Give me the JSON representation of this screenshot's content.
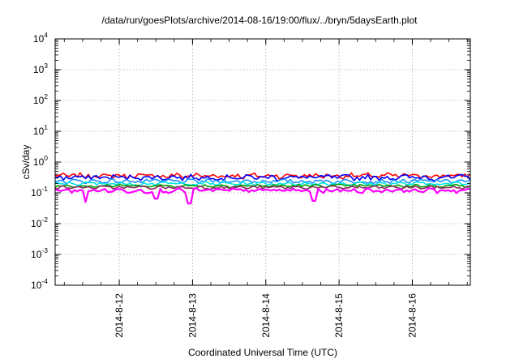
{
  "title": "/data/run/goesPlots/archive/2014-08-16/19:00/flux/../bryn/5daysEarth.plot",
  "xlabel": "Coordinated Universal Time (UTC)",
  "ylabel": "cSv/day",
  "chart_data": {
    "type": "line",
    "title": "/data/run/goesPlots/archive/2014-08-16/19:00/flux/../bryn/5daysEarth.plot",
    "xlabel": "Coordinated Universal Time (UTC)",
    "ylabel": "cSv/day",
    "yscale": "log",
    "ylim": [
      0.0001,
      10000
    ],
    "xlim": [
      "2014-08-11T03:00",
      "2014-08-16T19:00"
    ],
    "grid": true,
    "legend": "none",
    "y_ticks": [
      {
        "base": "10",
        "exp": "-4"
      },
      {
        "base": "10",
        "exp": "-3"
      },
      {
        "base": "10",
        "exp": "-2"
      },
      {
        "base": "10",
        "exp": "-1"
      },
      {
        "base": "10",
        "exp": "0"
      },
      {
        "base": "10",
        "exp": "1"
      },
      {
        "base": "10",
        "exp": "2"
      },
      {
        "base": "10",
        "exp": "3"
      },
      {
        "base": "10",
        "exp": "4"
      }
    ],
    "x_ticks": [
      "2014-8-12",
      "2014-8-13",
      "2014-8-14",
      "2014-8-15",
      "2014-8-16"
    ],
    "x_tick_dates": [
      "2014-08-12T00:00",
      "2014-08-13T00:00",
      "2014-08-14T00:00",
      "2014-08-15T00:00",
      "2014-08-16T00:00"
    ],
    "series": [
      {
        "color": "#ff0000",
        "level": 0.36,
        "spread": 0.18
      },
      {
        "color": "#0000ff",
        "level": 0.32,
        "spread": 0.18
      },
      {
        "color": "#1e90ff",
        "level": 0.24,
        "spread": 0.14
      },
      {
        "color": "#00e5e5",
        "level": 0.2,
        "spread": 0.12
      },
      {
        "color": "#00a000",
        "level": 0.17,
        "spread": 0.1
      },
      {
        "color": "#8b2a5e",
        "level": 0.15,
        "spread": 0.1
      },
      {
        "color": "#ff00ff",
        "level": 0.12,
        "spread": 0.14
      }
    ],
    "dips": [
      {
        "date": "2014-08-11T13:00",
        "value": 0.05
      },
      {
        "date": "2014-08-12T12:00",
        "value": 0.065
      },
      {
        "date": "2014-08-12T23:00",
        "value": 0.045
      },
      {
        "date": "2014-08-14T16:00",
        "value": 0.055
      }
    ]
  }
}
